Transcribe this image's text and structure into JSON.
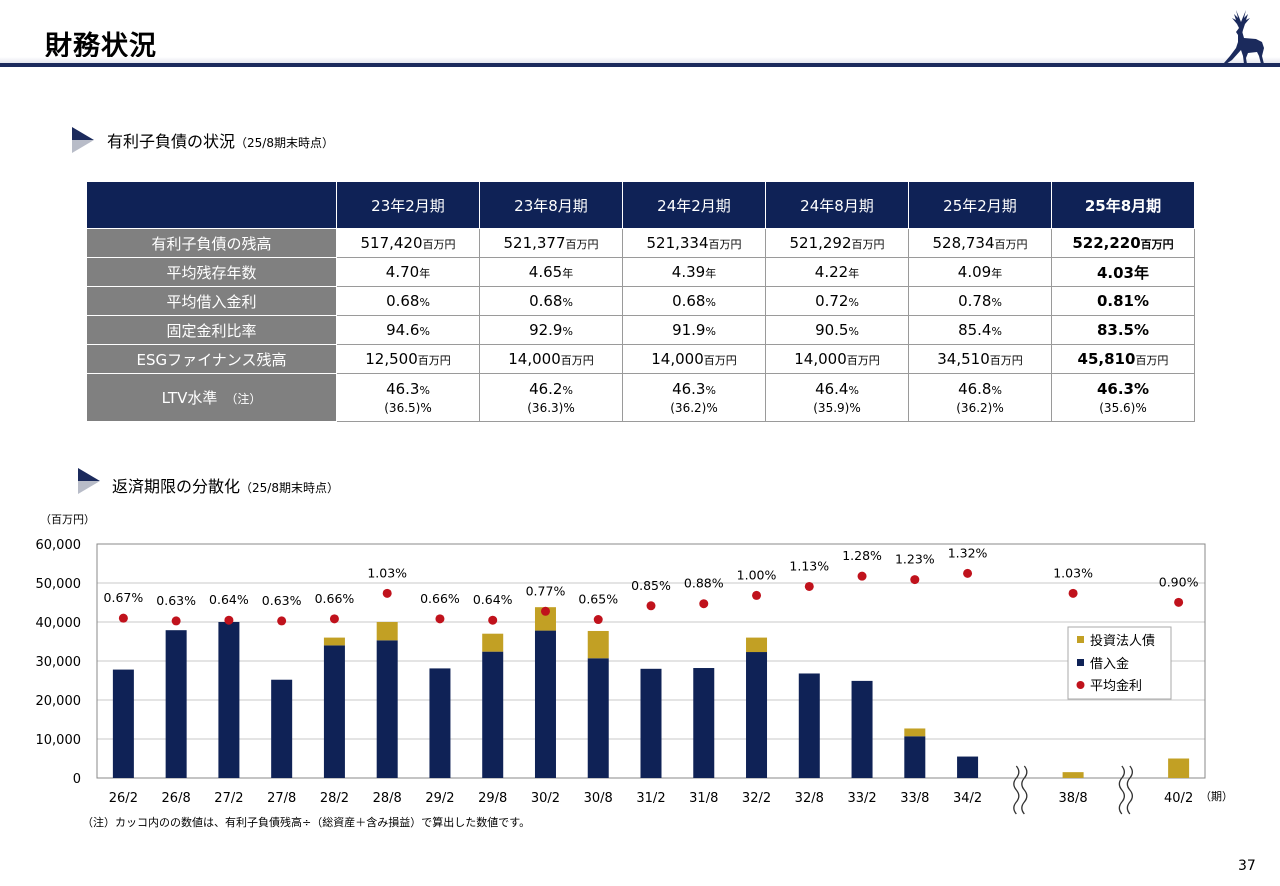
{
  "header": {
    "title": "財務状況"
  },
  "section1": {
    "title": "有利子負債の状況",
    "subtitle": "（25/8期末時点）"
  },
  "table": {
    "columns": [
      "23年2月期",
      "23年8月期",
      "24年2月期",
      "24年8月期",
      "25年2月期",
      "25年8月期"
    ],
    "rows": [
      {
        "label": "有利子負債の残高",
        "unit": "百万円",
        "values": [
          "517,420",
          "521,377",
          "521,334",
          "521,292",
          "528,734",
          "522,220"
        ]
      },
      {
        "label": "平均残存年数",
        "unit": "年",
        "values": [
          "4.70",
          "4.65",
          "4.39",
          "4.22",
          "4.09",
          "4.03"
        ]
      },
      {
        "label": "平均借入金利",
        "unit": "%",
        "values": [
          "0.68",
          "0.68",
          "0.68",
          "0.72",
          "0.78",
          "0.81"
        ]
      },
      {
        "label": "固定金利比率",
        "unit": "%",
        "values": [
          "94.6",
          "92.9",
          "91.9",
          "90.5",
          "85.4",
          "83.5"
        ]
      },
      {
        "label": "ESGファイナンス残高",
        "unit": "百万円",
        "values": [
          "12,500",
          "14,000",
          "14,000",
          "14,000",
          "34,510",
          "45,810"
        ]
      },
      {
        "label": "LTV水準",
        "label_note": "（注）",
        "unit": "%",
        "values": [
          "46.3",
          "46.2",
          "46.3",
          "46.4",
          "46.8",
          "46.3"
        ],
        "sub_values": [
          "(36.5)",
          "(36.3)",
          "(36.2)",
          "(35.9)",
          "(36.2)",
          "(35.6)"
        ]
      }
    ]
  },
  "section2": {
    "title": "返済期限の分散化",
    "subtitle": "（25/8期末時点）"
  },
  "chart_data": {
    "type": "bar",
    "stacked": true,
    "y_unit_label": "（百万円）",
    "x_unit_label": "（期）",
    "categories": [
      "26/2",
      "26/8",
      "27/2",
      "27/8",
      "28/2",
      "28/8",
      "29/2",
      "29/8",
      "30/2",
      "30/8",
      "31/2",
      "31/8",
      "32/2",
      "32/8",
      "33/2",
      "33/8",
      "34/2",
      "38/8",
      "40/2"
    ],
    "axis_break_after": [
      "34/2",
      "38/8"
    ],
    "ylim": [
      0,
      60000
    ],
    "yticks": [
      "0",
      "10,000",
      "20,000",
      "30,000",
      "40,000",
      "50,000",
      "60,000"
    ],
    "series": [
      {
        "name": "借入金",
        "color": "#0f2256",
        "values": [
          27800,
          37900,
          40000,
          25200,
          34000,
          35300,
          28100,
          32400,
          37800,
          30700,
          28000,
          28200,
          32300,
          26800,
          24900,
          10700,
          5500,
          0,
          0
        ]
      },
      {
        "name": "投資法人債",
        "color": "#c2a024",
        "values": [
          0,
          0,
          0,
          0,
          2000,
          4700,
          0,
          4600,
          6000,
          7000,
          0,
          0,
          3700,
          0,
          0,
          2000,
          0,
          1500,
          5000
        ]
      },
      {
        "name": "平均金利",
        "type": "scatter",
        "color": "#c0121c",
        "labels": [
          "0.67%",
          "0.63%",
          "0.64%",
          "0.63%",
          "0.66%",
          "1.03%",
          "0.66%",
          "0.64%",
          "0.77%",
          "0.65%",
          "0.85%",
          "0.88%",
          "1.00%",
          "1.13%",
          "1.28%",
          "1.23%",
          "1.32%",
          "1.03%",
          "0.90%"
        ],
        "values": [
          0.67,
          0.63,
          0.64,
          0.63,
          0.66,
          1.03,
          0.66,
          0.64,
          0.77,
          0.65,
          0.85,
          0.88,
          1.0,
          1.13,
          1.28,
          1.23,
          1.32,
          1.03,
          0.9
        ]
      }
    ],
    "legend": {
      "placement": "right",
      "items": [
        "投資法人債",
        "借入金",
        "平均金利"
      ]
    }
  },
  "note": "（注）カッコ内のの数値は、有利子負債残高÷（総資産＋含み損益）で算出した数値です。",
  "page_number": "37"
}
